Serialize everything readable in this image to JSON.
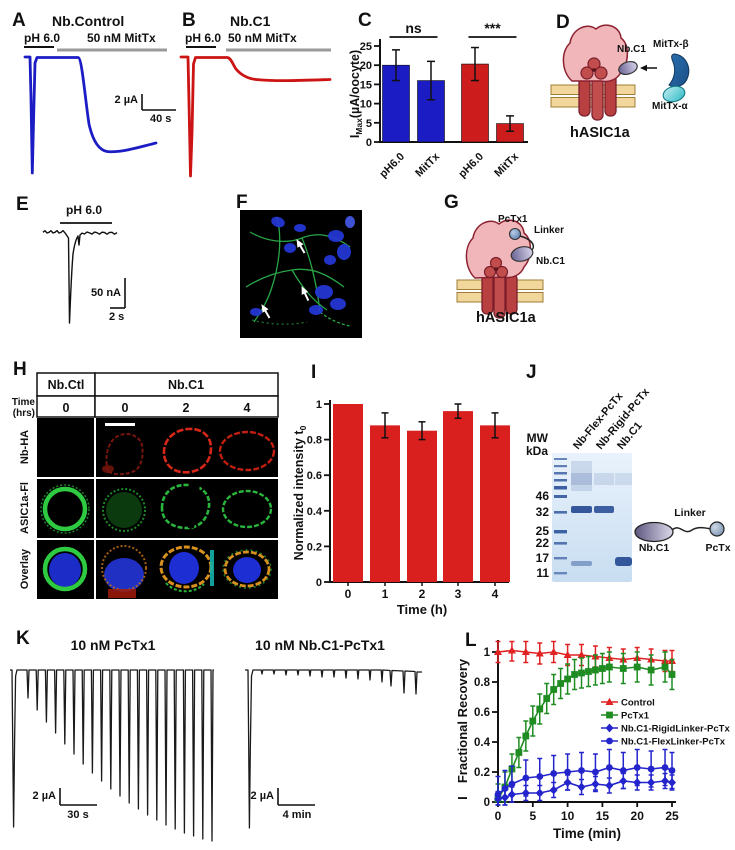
{
  "figure": {
    "panels": {
      "A": {
        "label": "A",
        "title": "Nb.Control",
        "ph": "pH 6.0",
        "drug": "50 nM MitTx",
        "scale_v": "2 µA",
        "scale_h": "40 s",
        "trace_color": "#1c1cc4"
      },
      "B": {
        "label": "B",
        "title": "Nb.C1",
        "ph": "pH 6.0",
        "drug": "50 nM MitTx",
        "trace_color": "#cc1414"
      },
      "C": {
        "label": "C"
      },
      "D": {
        "label": "D",
        "nb": "Nb.C1",
        "beta": "MitTx-β",
        "alpha": "MitTx-α",
        "channel": "hASIC1a"
      },
      "E": {
        "label": "E",
        "ph": "pH 6.0",
        "scale_v": "50 nA",
        "scale_h": "2 s"
      },
      "F": {
        "label": "F"
      },
      "G": {
        "label": "G",
        "pctx": "PcTx1",
        "linker": "Linker",
        "nb": "Nb.C1",
        "channel": "hASIC1a"
      },
      "H": {
        "label": "H",
        "col_ctl": "Nb.Ctl",
        "col_c1": "Nb.C1",
        "time_line1": "Time",
        "time_line2": "(hrs)",
        "times": [
          "0",
          "0",
          "2",
          "4"
        ],
        "rows": [
          "Nb-HA",
          "ASIC1a-Fl",
          "Overlay"
        ]
      },
      "I": {
        "label": "I"
      },
      "J": {
        "label": "J",
        "mw1": "MW",
        "mw2": "kDa",
        "lanes": [
          "Nb-Flex-PcTx",
          "Nb-Rigid-PcTx",
          "Nb.C1"
        ],
        "mws": [
          "46",
          "32",
          "25",
          "22",
          "17",
          "11"
        ],
        "linker": "Linker",
        "nb": "Nb.C1",
        "pctx": "PcTx"
      },
      "K": {
        "label": "K",
        "title_left": "10 nM PcTx1",
        "title_right": "10 nM Nb.C1-PcTx1",
        "scale_v_left": "2 µA",
        "scale_h_left": "30 s",
        "scale_v_right": "2 µA",
        "scale_h_right": "4 min"
      },
      "L": {
        "label": "L"
      }
    }
  },
  "chart_data": [
    {
      "type": "bar",
      "panel": "C",
      "categories": [
        "pH6.0",
        "MitTx",
        "pH6.0",
        "MitTx"
      ],
      "values": [
        20,
        16,
        20.3,
        4.8
      ],
      "errors": [
        4,
        5,
        4.3,
        2
      ],
      "colors": [
        "#1c1cc4",
        "#1c1cc4",
        "#cc1c1c",
        "#cc1c1c"
      ],
      "ylim": [
        0,
        25
      ],
      "yticks": [
        0,
        5,
        10,
        15,
        20,
        25
      ],
      "ylabel_parts": [
        {
          "t": "I"
        },
        {
          "t": "Max",
          "sub": true
        },
        {
          "t": "(µA/oocyte)"
        }
      ],
      "annotations": [
        {
          "text": "ns",
          "bars": [
            0,
            1
          ]
        },
        {
          "text": "***",
          "bars": [
            2,
            3
          ]
        }
      ]
    },
    {
      "type": "bar",
      "panel": "I",
      "categories": [
        "0",
        "1",
        "2",
        "3",
        "4"
      ],
      "values": [
        1.0,
        0.88,
        0.85,
        0.96,
        0.88
      ],
      "errors": [
        0,
        0.07,
        0.05,
        0.04,
        0.07
      ],
      "color": "#da1f1f",
      "xlabel": "Time (h)",
      "ylabel_parts": [
        {
          "t": "Normalized intensity t"
        },
        {
          "t": "0",
          "sub": true
        }
      ],
      "ylim": [
        0,
        1
      ],
      "yticks": [
        0,
        0.2,
        0.4,
        0.6,
        0.8,
        1
      ]
    },
    {
      "type": "line",
      "panel": "L",
      "xlabel": "Time (min)",
      "ylabel": "Fractional Recovery",
      "ylabel_prefix": "I",
      "xlim": [
        0,
        25
      ],
      "ylim": [
        0,
        1.05
      ],
      "xticks": [
        0,
        5,
        10,
        15,
        20,
        25
      ],
      "yticks": [
        0,
        0.2,
        0.4,
        0.6,
        0.8,
        1
      ],
      "legend_position": "inside-right",
      "series": [
        {
          "name": "Control",
          "color": "#e02222",
          "marker": "triangle",
          "err": 0.07,
          "x": [
            0,
            2,
            4,
            6,
            8,
            10,
            12,
            14,
            16,
            18,
            20,
            22,
            24,
            25
          ],
          "y": [
            1.0,
            1.01,
            1.0,
            0.99,
            1.0,
            0.98,
            0.98,
            0.97,
            0.96,
            0.95,
            0.96,
            0.95,
            0.94,
            0.94
          ]
        },
        {
          "name": "PcTx1",
          "color": "#1f8c22",
          "marker": "square",
          "err": 0.1,
          "x": [
            0,
            1,
            2,
            3,
            4,
            5,
            6,
            7,
            8,
            9,
            10,
            11,
            12,
            13,
            14,
            15,
            16,
            18,
            20,
            22,
            24,
            25
          ],
          "y": [
            0.02,
            0.1,
            0.22,
            0.33,
            0.44,
            0.54,
            0.62,
            0.69,
            0.75,
            0.79,
            0.82,
            0.85,
            0.86,
            0.87,
            0.88,
            0.89,
            0.9,
            0.89,
            0.9,
            0.88,
            0.9,
            0.85
          ]
        },
        {
          "name": "Nb.C1-RigidLinker-PcTx",
          "color": "#2424cc",
          "marker": "diamond",
          "err": 0.05,
          "x": [
            0,
            1,
            2,
            4,
            6,
            8,
            10,
            12,
            14,
            16,
            18,
            20,
            22,
            24,
            25
          ],
          "y": [
            0.02,
            0.03,
            0.05,
            0.06,
            0.06,
            0.08,
            0.13,
            0.1,
            0.12,
            0.11,
            0.14,
            0.13,
            0.13,
            0.14,
            0.13
          ]
        },
        {
          "name": "Nb.C1-FlexLinker-PcTx",
          "color": "#2424cc",
          "marker": "circle",
          "err": 0.12,
          "x": [
            0,
            1,
            2,
            4,
            6,
            8,
            10,
            12,
            14,
            16,
            18,
            20,
            22,
            24,
            25
          ],
          "y": [
            0.05,
            0.09,
            0.12,
            0.16,
            0.17,
            0.19,
            0.2,
            0.21,
            0.2,
            0.23,
            0.21,
            0.23,
            0.22,
            0.23,
            0.21
          ]
        }
      ]
    }
  ]
}
